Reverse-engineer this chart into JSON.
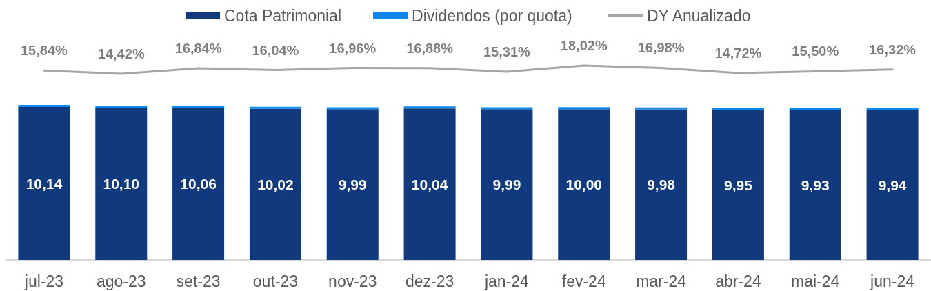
{
  "chart_data": [
    {
      "type": "line",
      "categories": [
        null,
        null,
        null,
        null,
        null,
        null,
        null,
        null,
        null,
        null,
        null,
        null
      ],
      "series": [
        {
          "name": "DY Anualizado",
          "color": "#a6a6a6",
          "values": [
            15.84,
            14.42,
            16.84,
            16.04,
            16.96,
            16.88,
            15.31,
            18.02,
            16.98,
            14.72,
            15.5,
            16.32
          ],
          "value_labels": [
            "15,84%",
            "14,42%",
            "16,84%",
            "16,04%",
            "16,96%",
            "16,88%",
            "15,31%",
            "18,02%",
            "16,98%",
            "14,72%",
            "15,50%",
            "16,32%"
          ]
        }
      ],
      "tick_labels": false,
      "legend": "top"
    },
    {
      "type": "bar",
      "stacked": true,
      "categories": [
        "jul-23",
        "ago-23",
        "set-23",
        "out-23",
        "nov-23",
        "dez-23",
        "jan-24",
        "fev-24",
        "mar-24",
        "abr-24",
        "mai-24",
        "jun-24"
      ],
      "series": [
        {
          "name": "Cota Patrimonial",
          "color": "#113a7e",
          "values": [
            10.14,
            10.1,
            10.06,
            10.02,
            9.99,
            10.04,
            9.99,
            10.0,
            9.98,
            9.95,
            9.93,
            9.94
          ],
          "value_labels": [
            "10,14",
            "10,10",
            "10,06",
            "10,02",
            "9,99",
            "10,04",
            "9,99",
            "10,00",
            "9,98",
            "9,95",
            "9,93",
            "9,94"
          ]
        },
        {
          "name": "Dividendos (por quota)",
          "color": "#0b88ee",
          "values": [
            0.14,
            0.13,
            0.13,
            0.13,
            0.13,
            0.14,
            0.13,
            0.13,
            0.13,
            0.13,
            0.13,
            0.13
          ]
        }
      ],
      "tick_labels": "x",
      "legend": "top"
    }
  ]
}
